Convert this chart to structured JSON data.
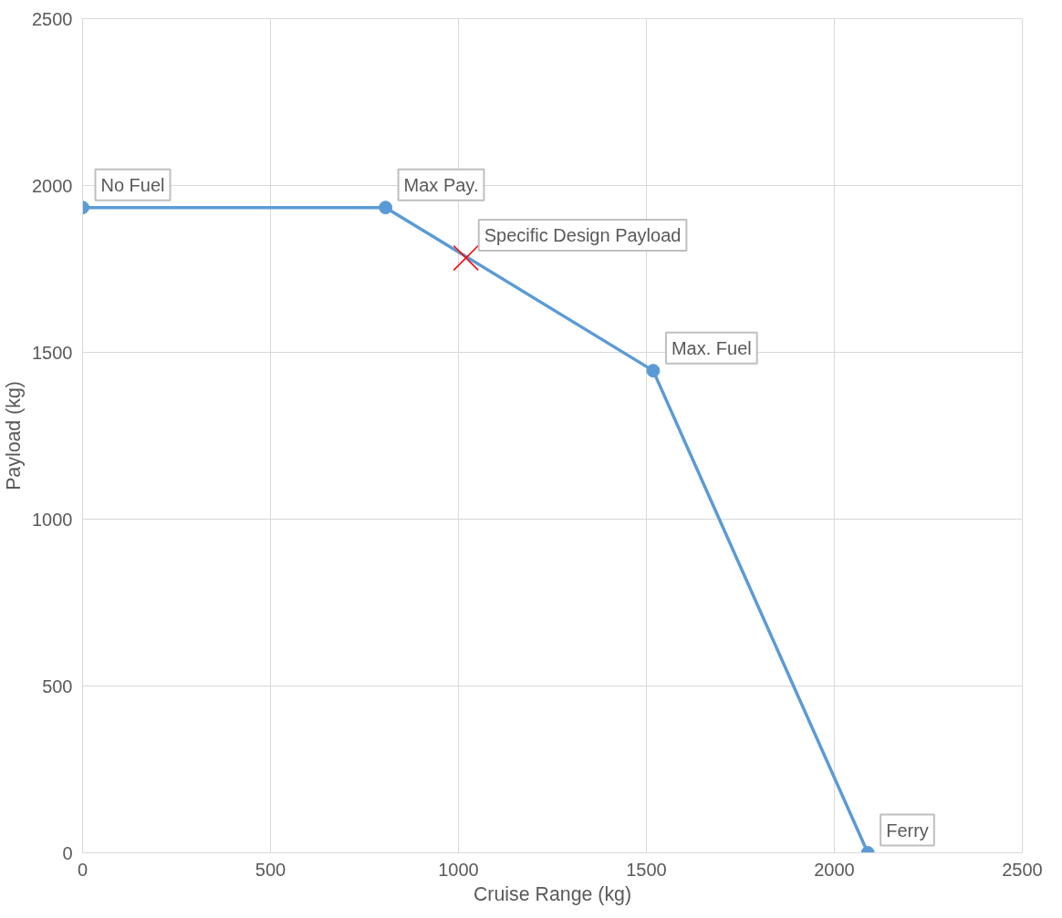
{
  "chart_data": {
    "type": "line",
    "xlabel": "Cruise Range (kg)",
    "ylabel": "Payload (kg)",
    "xlim": [
      0,
      2500
    ],
    "ylim": [
      0,
      2500
    ],
    "xticks": [
      0,
      500,
      1000,
      1500,
      2000,
      2500
    ],
    "yticks": [
      0,
      500,
      1000,
      1500,
      2000,
      2500
    ],
    "grid": true,
    "series": [
      {
        "color": "#5b9bd5",
        "marker": "circle",
        "x": [
          0,
          806,
          1518,
          2089
        ],
        "values": [
          1934,
          1934,
          1445,
          0
        ]
      },
      {
        "type": "scatter",
        "color": "#ff0000",
        "marker": "cross",
        "x": [
          1020
        ],
        "values": [
          1783
        ]
      }
    ],
    "annotations": [
      {
        "text": "No Fuel",
        "x": 0,
        "y": 1934
      },
      {
        "text": "Max Pay.",
        "x": 806,
        "y": 1934
      },
      {
        "text": "Specific Design Payload",
        "x": 1020,
        "y": 1783
      },
      {
        "text": "Max. Fuel",
        "x": 1518,
        "y": 1445
      },
      {
        "text": "Ferry",
        "x": 2089,
        "y": 0
      }
    ]
  }
}
